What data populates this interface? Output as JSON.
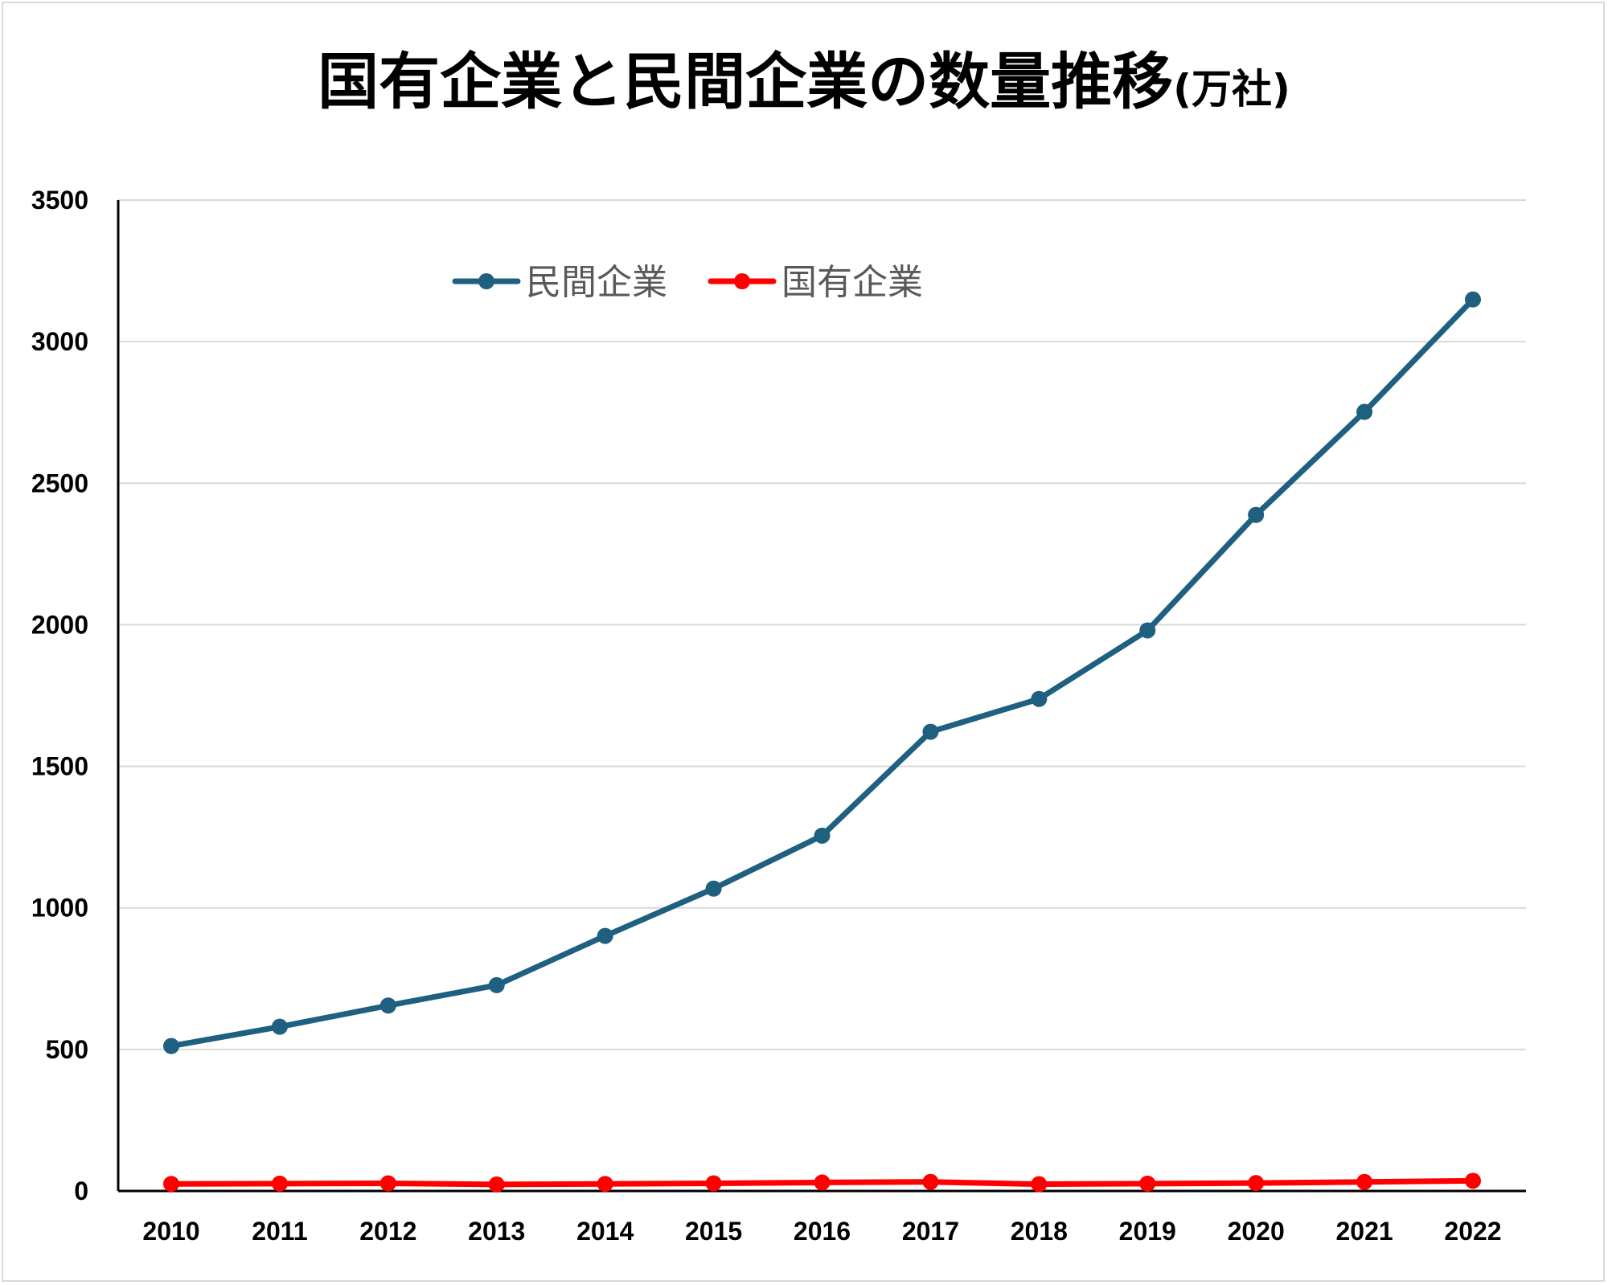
{
  "chart_data": {
    "type": "line",
    "title": "国有企業と民間企業の数量推移",
    "title_unit": "(万社)",
    "xlabel": "",
    "ylabel": "",
    "x": [
      "2010",
      "2011",
      "2012",
      "2013",
      "2014",
      "2015",
      "2016",
      "2017",
      "2018",
      "2019",
      "2020",
      "2021",
      "2022"
    ],
    "ylim": [
      0,
      3500
    ],
    "yticks": [
      0,
      500,
      1000,
      1500,
      2000,
      2500,
      3000,
      3500
    ],
    "grid": true,
    "legend_position": "top-center",
    "series": [
      {
        "name": "民間企業",
        "color": "#1f5f80",
        "values": [
          512,
          580,
          655,
          727,
          901,
          1068,
          1255,
          1622,
          1738,
          1980,
          2388,
          2752,
          3149
        ]
      },
      {
        "name": "国有企業",
        "color": "#ff0000",
        "values": [
          25,
          26,
          27,
          23,
          25,
          27,
          30,
          32,
          24,
          26,
          28,
          32,
          36
        ]
      }
    ]
  }
}
